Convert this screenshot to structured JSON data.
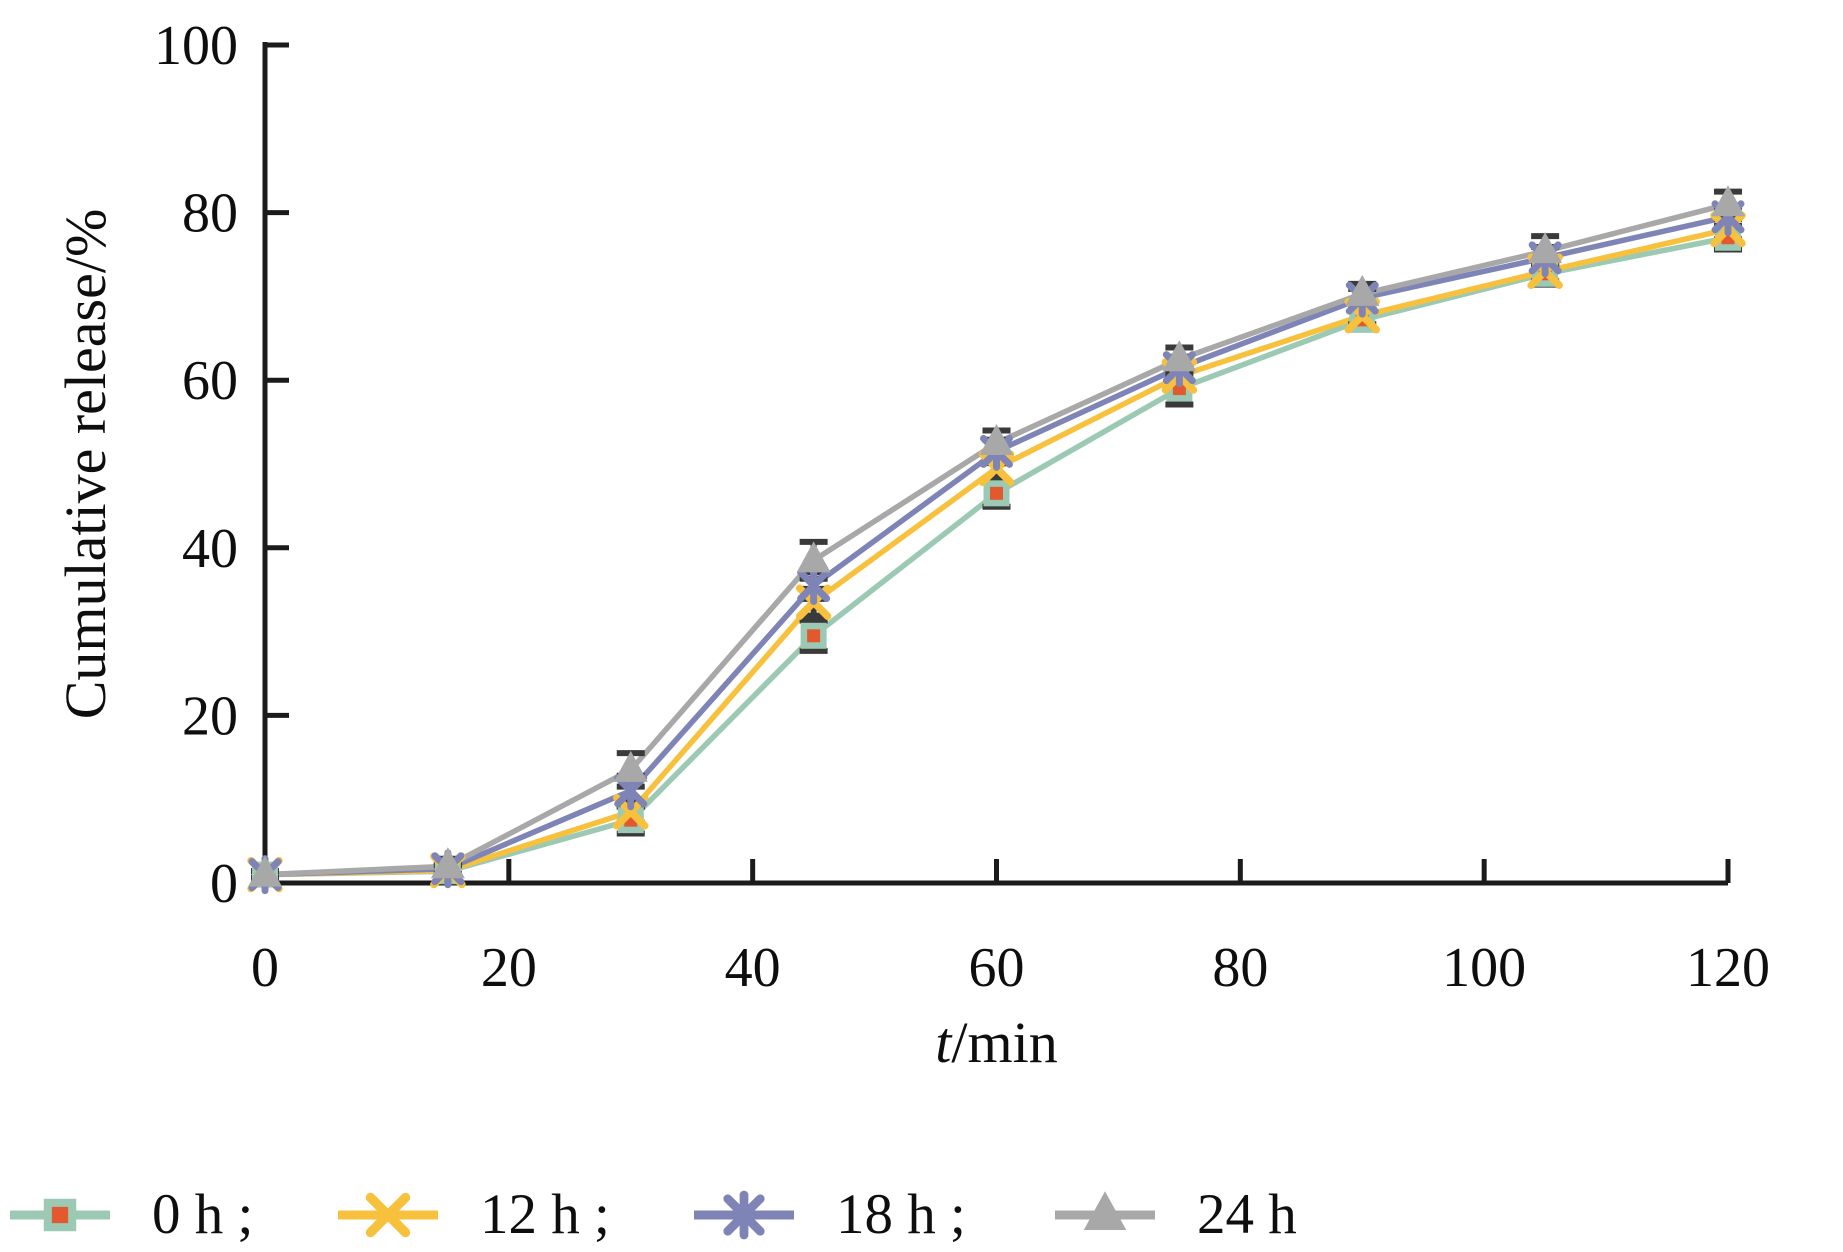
{
  "chart_data": {
    "type": "line",
    "title": "",
    "xlabel_italic": "t",
    "xlabel_rest": "/min",
    "ylabel": "Cumulative release/%",
    "x": [
      0,
      15,
      30,
      45,
      60,
      75,
      90,
      105,
      120
    ],
    "xlim": [
      0,
      120
    ],
    "ylim": [
      0,
      100
    ],
    "xticks": [
      0,
      20,
      40,
      60,
      80,
      100,
      120
    ],
    "yticks": [
      0,
      20,
      40,
      60,
      80,
      100
    ],
    "grid": false,
    "legend_position": "bottom",
    "axis_color": "#1b1b1b",
    "error_bar_color": "#3a3a3a",
    "series": [
      {
        "name": "0 h ;",
        "marker": "square",
        "line_color": "#9bc9b4",
        "marker_fill": "#e2582f",
        "values": [
          1,
          1.4,
          7.5,
          29.5,
          46.5,
          59,
          67.2,
          72.7,
          77
        ],
        "errors": [
          0.4,
          0.7,
          1.6,
          1.8,
          1.6,
          1.9,
          1.1,
          1.3,
          1.4
        ]
      },
      {
        "name": "12 h ;",
        "marker": "x",
        "line_color": "#f7c13e",
        "values": [
          1,
          1.5,
          8.5,
          33.5,
          49.5,
          60.5,
          67.7,
          73,
          78
        ],
        "errors": [
          0.4,
          0.7,
          1.3,
          1.6,
          1.4,
          1.4,
          1.0,
          1.2,
          1.2
        ]
      },
      {
        "name": "18 h ;",
        "marker": "asterisk",
        "line_color": "#7f84b6",
        "values": [
          1,
          1.7,
          11,
          35.5,
          51.5,
          61.5,
          69.8,
          74.6,
          79.5
        ],
        "errors": [
          0.4,
          0.8,
          1.8,
          1.6,
          1.4,
          1.3,
          1.1,
          1.3,
          1.2
        ]
      },
      {
        "name": "24 h",
        "marker": "triangle",
        "line_color": "#a8a8a8",
        "values": [
          1,
          2,
          13.5,
          38.5,
          52.5,
          62.5,
          70.3,
          75.4,
          81
        ],
        "errors": [
          0.4,
          0.9,
          2.0,
          2.2,
          1.5,
          1.4,
          1.2,
          1.8,
          1.5
        ]
      }
    ]
  }
}
